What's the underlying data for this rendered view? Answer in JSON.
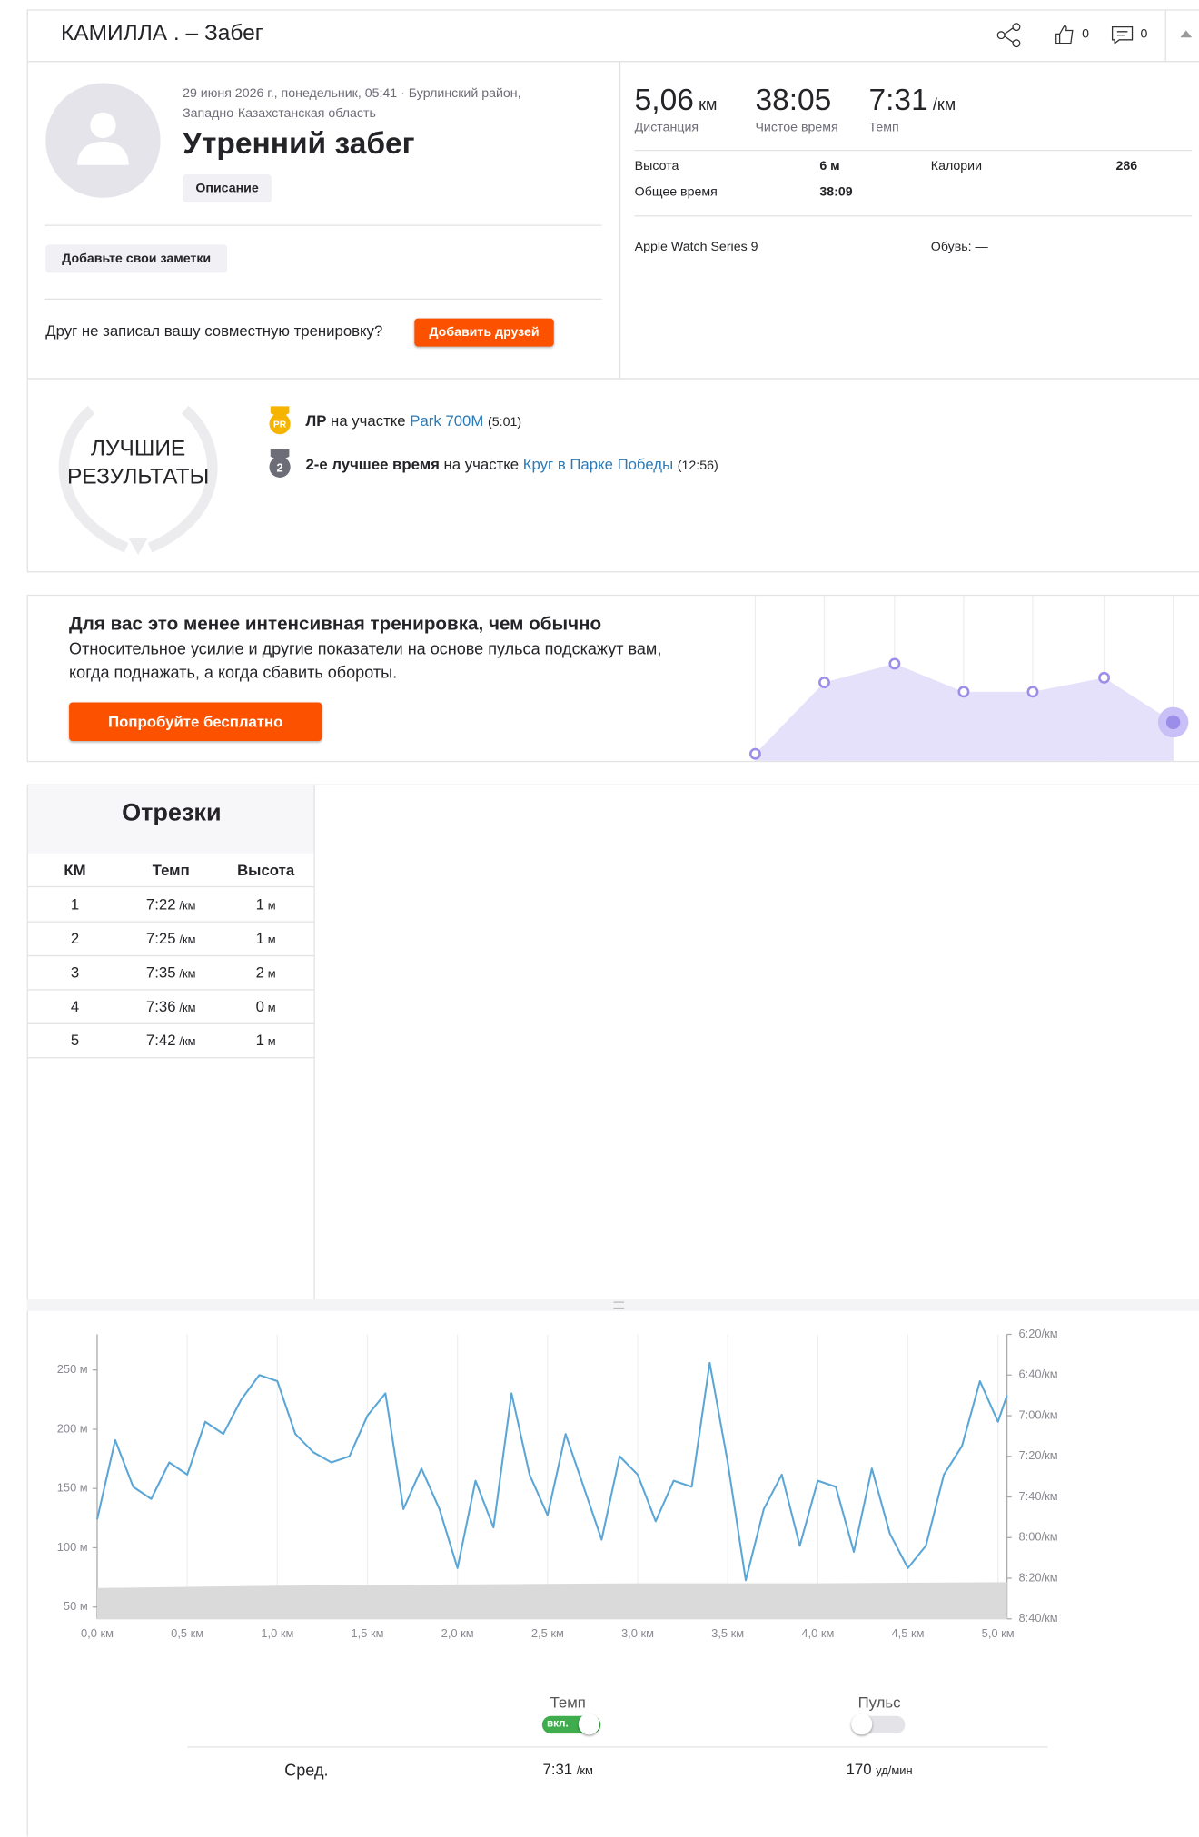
{
  "header": {
    "title": "КАМИЛЛА . – Забег",
    "kudos": 0,
    "comments": 0
  },
  "activity": {
    "date_line1": "29 июня 2026 г., понедельник, 05:41 · Бурлинский район,",
    "date_line2": "Западно-Казахстанская область",
    "name": "Утренний забег",
    "description_button": "Описание",
    "notes_button": "Добавьте свои заметки",
    "friend_prompt": "Друг не записал вашу совместную тренировку?",
    "add_friends_button": "Добавить друзей"
  },
  "stats": {
    "primary": [
      {
        "value": "5,06",
        "unit": "км",
        "label": "Дистанция"
      },
      {
        "value": "38:05",
        "label": "Чистое время"
      },
      {
        "value": "7:31",
        "unit": "/км",
        "label": "Темп"
      }
    ],
    "secondary": [
      {
        "label": "Высота",
        "value": "6 м"
      },
      {
        "label": "Калории",
        "value": "286"
      },
      {
        "label": "Общее время",
        "value": "38:09"
      }
    ],
    "device": "Apple Watch Series 9",
    "shoes": "Обувь: —"
  },
  "achievements": {
    "title": "ЛУЧШИЕ РЕЗУЛЬТАТЫ",
    "items": [
      {
        "badge": "PR",
        "strong": "ЛР",
        "text": "на участке",
        "segment": "Park 700M",
        "time": "(5:01)"
      },
      {
        "badge": "2",
        "strong": "2-е лучшее время",
        "text": "на участке",
        "segment": "Круг в Парке Победы",
        "time": "(12:56)"
      }
    ]
  },
  "promo": {
    "title": "Для вас это менее интенсивная тренировка, чем обычно",
    "line1": "Относительное усилие и другие показатели на основе пульса подскажут вам,",
    "line2": "когда поднажать, а когда сбавить обороты.",
    "button": "Попробуйте бесплатно"
  },
  "splits": {
    "title": "Отрезки",
    "columns": [
      "КМ",
      "Темп",
      "Высота"
    ],
    "pace_unit": "/км",
    "elev_unit": "м",
    "rows": [
      [
        "1",
        "7:22",
        "1"
      ],
      [
        "2",
        "7:25",
        "1"
      ],
      [
        "3",
        "7:35",
        "2"
      ],
      [
        "4",
        "7:36",
        "0"
      ],
      [
        "5",
        "7:42",
        "1"
      ]
    ]
  },
  "chart_data": {
    "type": "line",
    "xlim": [
      0,
      5.05
    ],
    "ylim": [
      40,
      280
    ],
    "y2lim": [
      520,
      380
    ],
    "xticks": [
      {
        "value": 0,
        "label": "0,0 км"
      },
      {
        "value": 0.5,
        "label": "0,5 км"
      },
      {
        "value": 1,
        "label": "1,0 км"
      },
      {
        "value": 1.5,
        "label": "1,5 км"
      },
      {
        "value": 2,
        "label": "2,0 км"
      },
      {
        "value": 2.5,
        "label": "2,5 км"
      },
      {
        "value": 3,
        "label": "3,0 км"
      },
      {
        "value": 3.5,
        "label": "3,5 км"
      },
      {
        "value": 4,
        "label": "4,0 км"
      },
      {
        "value": 4.5,
        "label": "4,5 км"
      },
      {
        "value": 5,
        "label": "5,0 км"
      }
    ],
    "yticks": [
      {
        "value": 50,
        "label": "50 м"
      },
      {
        "value": 100,
        "label": "100 м"
      },
      {
        "value": 150,
        "label": "150 м"
      },
      {
        "value": 200,
        "label": "200 м"
      },
      {
        "value": 250,
        "label": "250 м"
      }
    ],
    "y2ticks": [
      {
        "value": 380,
        "label": "6:20/км"
      },
      {
        "value": 400,
        "label": "6:40/км"
      },
      {
        "value": 420,
        "label": "7:00/км"
      },
      {
        "value": 440,
        "label": "7:20/км"
      },
      {
        "value": 460,
        "label": "7:40/км"
      },
      {
        "value": 480,
        "label": "8:00/км"
      },
      {
        "value": 500,
        "label": "8:20/км"
      },
      {
        "value": 520,
        "label": "8:40/км"
      }
    ],
    "series": [
      {
        "kind": "area",
        "color": "#dadada",
        "x": [
          0,
          1,
          2,
          3,
          4,
          5.05
        ],
        "values": [
          66,
          68,
          69,
          70,
          70,
          71
        ]
      },
      {
        "kind": "line",
        "axis": "y2",
        "color": "#5aa6d6",
        "x": [
          0,
          0.1,
          0.2,
          0.3,
          0.4,
          0.5,
          0.6,
          0.7,
          0.8,
          0.9,
          1,
          1.1,
          1.2,
          1.3,
          1.4,
          1.5,
          1.6,
          1.7,
          1.8,
          1.9,
          2,
          2.1,
          2.2,
          2.3,
          2.4,
          2.5,
          2.6,
          2.7,
          2.8,
          2.9,
          3,
          3.1,
          3.2,
          3.3,
          3.4,
          3.5,
          3.6,
          3.7,
          3.8,
          3.9,
          4,
          4.1,
          4.2,
          4.3,
          4.4,
          4.5,
          4.6,
          4.7,
          4.8,
          4.9,
          5,
          5.05
        ],
        "values": [
          471,
          432,
          455,
          461,
          443,
          449,
          423,
          429,
          412,
          400,
          403,
          429,
          438,
          443,
          440,
          420,
          409,
          466,
          446,
          466,
          495,
          452,
          475,
          409,
          449,
          469,
          429,
          455,
          481,
          440,
          449,
          472,
          452,
          455,
          394,
          443,
          501,
          466,
          449,
          484,
          452,
          455,
          487,
          446,
          478,
          495,
          484,
          449,
          435,
          403,
          423,
          410
        ]
      }
    ]
  },
  "summary": {
    "pace_label": "Темп",
    "toggle_on": "вкл.",
    "hr_label": "Пульс",
    "avg_label": "Сред.",
    "avg_pace": "7:31",
    "pace_unit": "/км",
    "avg_hr": 170,
    "hr_unit": "уд/мин"
  }
}
